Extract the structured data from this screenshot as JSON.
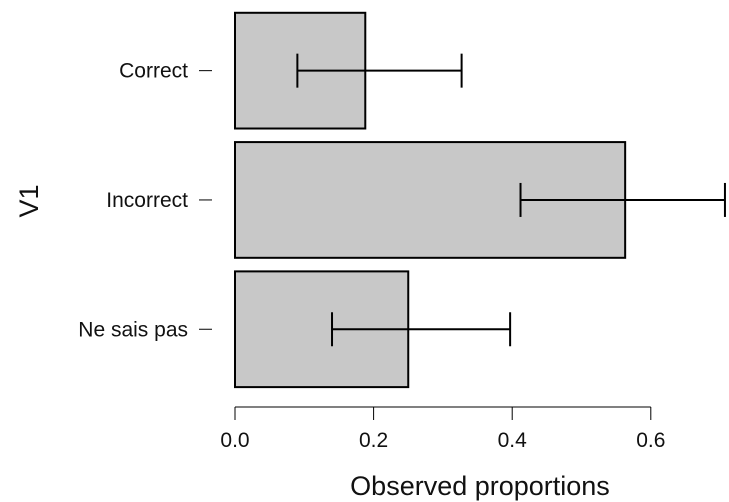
{
  "chart_data": {
    "type": "bar",
    "orientation": "horizontal",
    "categories": [
      "Correct",
      "Incorrect",
      "Ne sais pas"
    ],
    "values": [
      0.188,
      0.563,
      0.25
    ],
    "error_low": [
      0.09,
      0.412,
      0.14
    ],
    "error_high": [
      0.327,
      0.707,
      0.397
    ],
    "xlabel": "Observed proportions",
    "ylabel": "V1",
    "xlim": [
      0,
      0.6
    ],
    "xticks": [
      "0.0",
      "0.2",
      "0.4",
      "0.6"
    ],
    "xtick_values": [
      0,
      0.2,
      0.4,
      0.6
    ],
    "grid": false,
    "colors": {
      "bar_fill": "#c8c8c8",
      "bar_stroke": "#000000"
    }
  }
}
